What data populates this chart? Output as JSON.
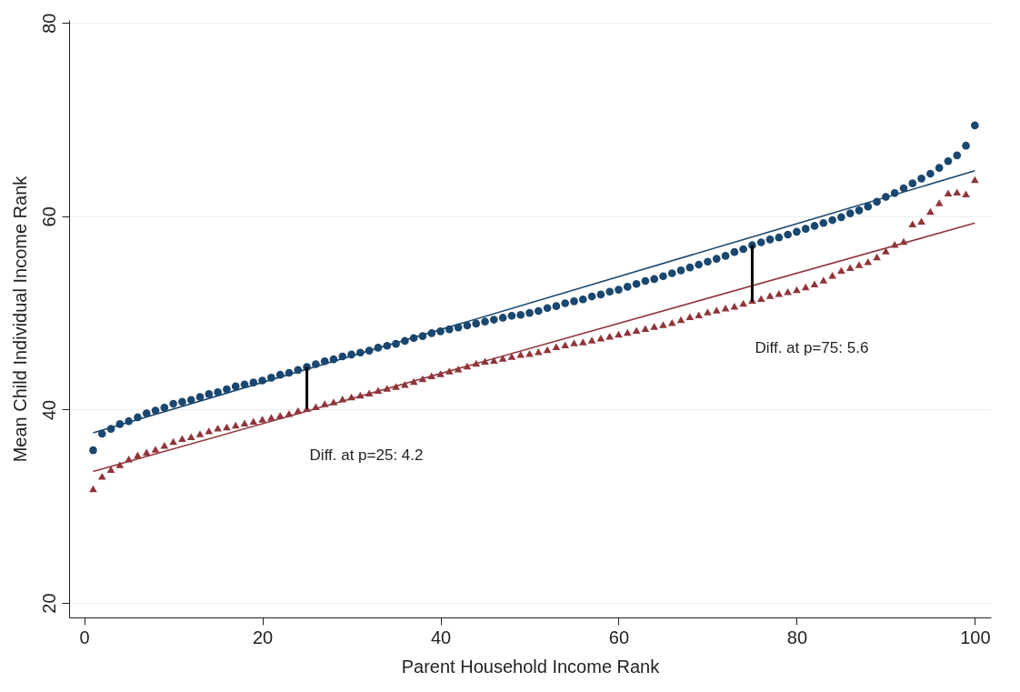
{
  "chart_data": {
    "type": "scatter",
    "xlabel": "Parent Household Income Rank",
    "ylabel": "Mean Child Individual Income Rank",
    "x": [
      1,
      2,
      3,
      4,
      5,
      6,
      7,
      8,
      9,
      10,
      11,
      12,
      13,
      14,
      15,
      16,
      17,
      18,
      19,
      20,
      21,
      22,
      23,
      24,
      25,
      26,
      27,
      28,
      29,
      30,
      31,
      32,
      33,
      34,
      35,
      36,
      37,
      38,
      39,
      40,
      41,
      42,
      43,
      44,
      45,
      46,
      47,
      48,
      49,
      50,
      51,
      52,
      53,
      54,
      55,
      56,
      57,
      58,
      59,
      60,
      61,
      62,
      63,
      64,
      65,
      66,
      67,
      68,
      69,
      70,
      71,
      72,
      73,
      74,
      75,
      76,
      77,
      78,
      79,
      80,
      81,
      82,
      83,
      84,
      85,
      86,
      87,
      88,
      89,
      90,
      91,
      92,
      93,
      94,
      95,
      96,
      97,
      98,
      99,
      100
    ],
    "series": [
      {
        "marker": "circle",
        "color": "#1a476f",
        "values": [
          35.8,
          37.5,
          38.0,
          38.5,
          38.8,
          39.2,
          39.6,
          39.9,
          40.2,
          40.6,
          40.8,
          41.0,
          41.3,
          41.6,
          41.8,
          42.1,
          42.4,
          42.6,
          42.8,
          43.0,
          43.3,
          43.6,
          43.8,
          44.1,
          44.4,
          44.7,
          45.0,
          45.2,
          45.5,
          45.7,
          45.9,
          46.1,
          46.4,
          46.6,
          46.8,
          47.1,
          47.4,
          47.6,
          47.9,
          48.1,
          48.3,
          48.5,
          48.7,
          48.9,
          49.1,
          49.3,
          49.5,
          49.7,
          49.8,
          50.0,
          50.2,
          50.5,
          50.7,
          51.0,
          51.2,
          51.4,
          51.7,
          51.9,
          52.2,
          52.4,
          52.7,
          53.0,
          53.3,
          53.5,
          53.8,
          54.1,
          54.4,
          54.7,
          55.0,
          55.3,
          55.6,
          55.9,
          56.3,
          56.6,
          57.0,
          57.3,
          57.6,
          57.8,
          58.1,
          58.4,
          58.7,
          59.0,
          59.3,
          59.6,
          59.9,
          60.3,
          60.6,
          61.0,
          61.5,
          62.0,
          62.4,
          62.9,
          63.4,
          63.9,
          64.4,
          65.0,
          65.7,
          66.3,
          67.3,
          69.4
        ]
      },
      {
        "marker": "triangle",
        "color": "#90353b",
        "values": [
          31.8,
          33.1,
          33.8,
          34.3,
          34.9,
          35.3,
          35.6,
          35.9,
          36.3,
          36.7,
          37.0,
          37.2,
          37.5,
          37.8,
          38.1,
          38.2,
          38.4,
          38.6,
          38.8,
          39.0,
          39.2,
          39.4,
          39.6,
          39.9,
          40.1,
          40.3,
          40.6,
          40.8,
          41.1,
          41.3,
          41.5,
          41.7,
          42.0,
          42.2,
          42.4,
          42.6,
          42.9,
          43.2,
          43.5,
          43.7,
          44.0,
          44.2,
          44.5,
          44.8,
          45.0,
          45.1,
          45.3,
          45.5,
          45.7,
          45.8,
          46.0,
          46.2,
          46.5,
          46.7,
          46.9,
          47.0,
          47.2,
          47.4,
          47.6,
          47.8,
          48.0,
          48.2,
          48.4,
          48.6,
          48.8,
          49.0,
          49.3,
          49.6,
          49.8,
          50.1,
          50.3,
          50.5,
          50.7,
          51.0,
          51.3,
          51.5,
          51.8,
          52.0,
          52.2,
          52.4,
          52.7,
          53.0,
          53.4,
          53.9,
          54.4,
          54.7,
          55.0,
          55.3,
          55.8,
          56.4,
          57.1,
          57.4,
          59.2,
          59.5,
          60.5,
          61.4,
          62.4,
          62.5,
          62.3,
          63.8
        ]
      },
      {
        "type": "line",
        "color": "#1a476f",
        "x": [
          1,
          100
        ],
        "values": [
          37.6,
          64.7
        ]
      },
      {
        "type": "line",
        "color": "#90353b",
        "x": [
          1,
          100
        ],
        "values": [
          33.6,
          59.3
        ]
      },
      {
        "type": "line",
        "color": "#000000",
        "x": [
          25,
          25
        ],
        "values": [
          40.1,
          44.4
        ]
      },
      {
        "type": "line",
        "color": "#000000",
        "x": [
          75,
          75
        ],
        "values": [
          51.2,
          57.0
        ]
      }
    ],
    "annotations": [
      {
        "text": "Diff. at p=25:  4.2",
        "x": 25,
        "y": 40.1
      },
      {
        "text": "Diff. at p=75:  5.6",
        "x": 75,
        "y": 51.2
      }
    ],
    "xlim": [
      -1.7,
      101.8
    ],
    "ylim": [
      18.5,
      80.3
    ],
    "xticks": [
      0,
      20,
      40,
      60,
      80,
      100
    ],
    "yticks": [
      20,
      40,
      60,
      80
    ],
    "grid": "y"
  }
}
